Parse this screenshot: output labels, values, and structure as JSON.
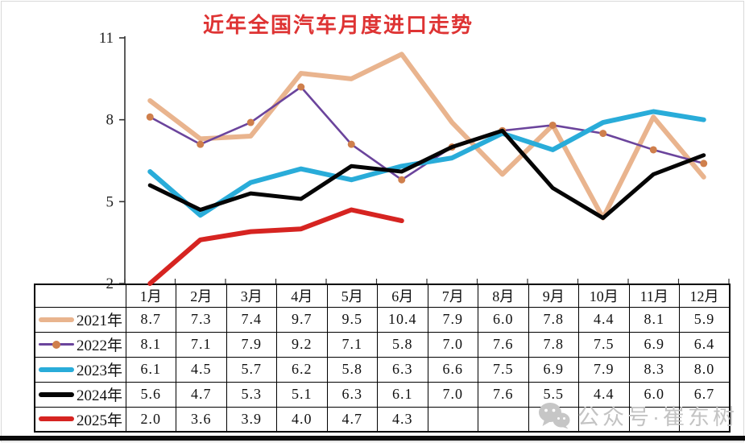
{
  "title_color": "#de3333",
  "watermark": {
    "text": "公众号·崔东树",
    "icon": "wechat-icon",
    "color": "#c3c3c3"
  },
  "axis_color": "#333333",
  "chart_data": {
    "type": "line",
    "title": "近年全国汽车月度进口走势",
    "categories": [
      "1月",
      "2月",
      "3月",
      "4月",
      "5月",
      "6月",
      "7月",
      "8月",
      "9月",
      "10月",
      "11月",
      "12月"
    ],
    "series": [
      {
        "name": "2021年",
        "color": "#e9b48e",
        "width": 6,
        "marker": false,
        "values": [
          8.7,
          7.3,
          7.4,
          9.7,
          9.5,
          10.4,
          7.9,
          6.0,
          7.8,
          4.4,
          8.1,
          5.9
        ]
      },
      {
        "name": "2022年",
        "color": "#6b449c",
        "width": 2.6,
        "marker": true,
        "marker_color": "#cf7f4c",
        "values": [
          8.1,
          7.1,
          7.9,
          9.2,
          7.1,
          5.8,
          7.0,
          7.6,
          7.8,
          7.5,
          6.9,
          6.4
        ]
      },
      {
        "name": "2023年",
        "color": "#29acd9",
        "width": 6,
        "marker": false,
        "values": [
          6.1,
          4.5,
          5.7,
          6.2,
          5.8,
          6.3,
          6.6,
          7.5,
          6.9,
          7.9,
          8.3,
          8.0
        ]
      },
      {
        "name": "2024年",
        "color": "#050505",
        "width": 5,
        "marker": false,
        "values": [
          5.6,
          4.7,
          5.3,
          5.1,
          6.3,
          6.1,
          7.0,
          7.6,
          5.5,
          4.4,
          6.0,
          6.7
        ]
      },
      {
        "name": "2025年",
        "color": "#d62421",
        "width": 6,
        "marker": false,
        "values": [
          2.0,
          3.6,
          3.9,
          4.0,
          4.7,
          4.3,
          null,
          null,
          null,
          null,
          null,
          null
        ]
      }
    ],
    "yticks": [
      2,
      5,
      8,
      11
    ],
    "ylim": [
      2,
      11
    ],
    "grid": false,
    "legend_position": "table-left-column"
  }
}
